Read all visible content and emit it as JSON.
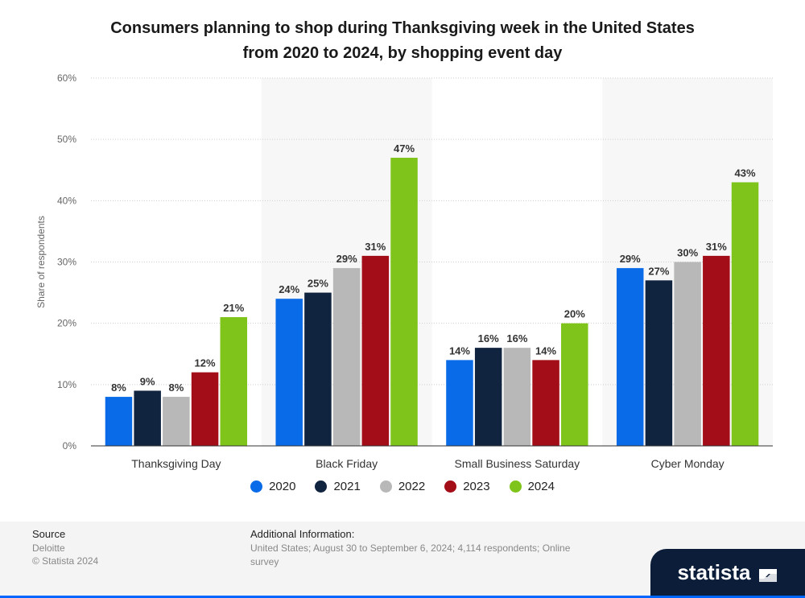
{
  "chart_data": {
    "type": "bar",
    "title": "Consumers planning to shop during Thanksgiving week in the United States from 2020 to 2024, by shopping event day",
    "title_lines": [
      "Consumers planning to shop during Thanksgiving week in the United States",
      "from 2020 to 2024, by shopping event day"
    ],
    "ylabel": "Share of respondents",
    "xlabel": "",
    "ylim": [
      0,
      60
    ],
    "yticks": [
      "0%",
      "10%",
      "20%",
      "30%",
      "40%",
      "50%",
      "60%"
    ],
    "categories": [
      "Thanksgiving Day",
      "Black Friday",
      "Small Business Saturday",
      "Cyber Monday"
    ],
    "series": [
      {
        "name": "2020",
        "color": "#0a6be8",
        "values": [
          8,
          24,
          14,
          29
        ]
      },
      {
        "name": "2021",
        "color": "#10233f",
        "values": [
          9,
          25,
          16,
          27
        ]
      },
      {
        "name": "2022",
        "color": "#b8b8b8",
        "values": [
          8,
          29,
          16,
          30
        ]
      },
      {
        "name": "2023",
        "color": "#a30d17",
        "values": [
          12,
          31,
          14,
          31
        ]
      },
      {
        "name": "2024",
        "color": "#7fc41b",
        "values": [
          21,
          47,
          20,
          43
        ]
      }
    ],
    "value_suffix": "%",
    "grid": true,
    "legend_position": "bottom"
  },
  "footer": {
    "source_heading": "Source",
    "source_name": "Deloitte",
    "copyright": "© Statista 2024",
    "additional_heading": "Additional Information:",
    "additional_text": "United States; August 30 to September 6, 2024; 4,114 respondents; Online survey"
  },
  "brand": {
    "logo_text": "statista",
    "logo_icon": "statista-logo-icon"
  }
}
